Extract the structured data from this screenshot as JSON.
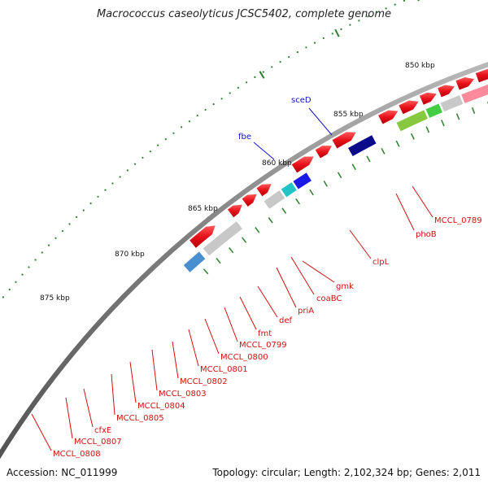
{
  "title": "Macrococcus caseolyticus JCSC5402, complete genome",
  "footer": {
    "accession": "Accession: NC_011999",
    "summary": "Topology: circular; Length: 2,102,324 bp; Genes: 2,011"
  },
  "scale_labels": [
    "850 kbp",
    "855 kbp",
    "860 kbp",
    "865 kbp",
    "870 kbp",
    "875 kbp"
  ],
  "top_gene_labels": [
    "sceD",
    "fbe"
  ],
  "gene_labels": [
    "MCCL_0789",
    "phoB",
    "clpL",
    "gmk",
    "coaBC",
    "priA",
    "def",
    "fmt",
    "MCCL_0799",
    "MCCL_0800",
    "MCCL_0801",
    "MCCL_0802",
    "MCCL_0803",
    "MCCL_0804",
    "MCCL_0805",
    "cfxE",
    "MCCL_0807",
    "MCCL_0808"
  ],
  "colors": {
    "strand_forward": "#e8101a",
    "label_red": "#d21010",
    "label_blue": "#1010d0",
    "tick_green": "#2a7f2a",
    "backbone": "#8a8a8a"
  }
}
